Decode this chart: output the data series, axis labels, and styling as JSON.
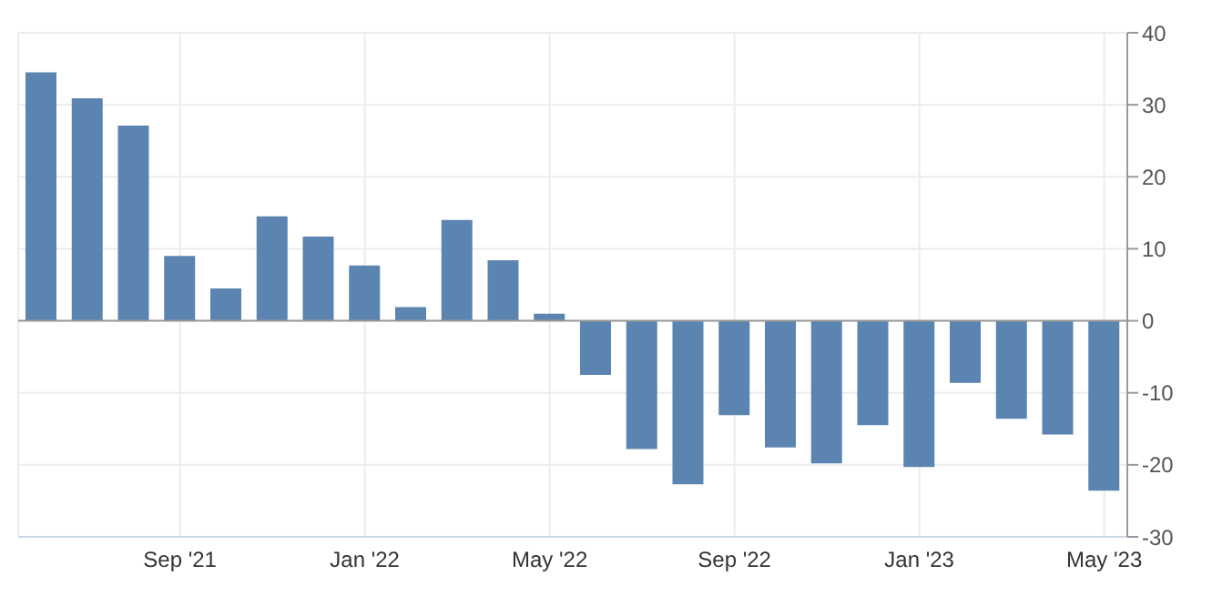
{
  "chart_data": {
    "type": "bar",
    "categories": [
      null,
      null,
      null,
      "Sep '21",
      null,
      null,
      null,
      "Jan '22",
      null,
      null,
      null,
      "May '22",
      null,
      null,
      null,
      "Sep '22",
      null,
      null,
      null,
      "Jan '23",
      null,
      null,
      null,
      "May '23"
    ],
    "values": [
      34.5,
      30.9,
      27.1,
      9.0,
      4.5,
      14.5,
      11.7,
      7.7,
      1.9,
      14.0,
      8.4,
      1.0,
      -7.5,
      -17.8,
      -22.7,
      -13.1,
      -17.6,
      -19.8,
      -14.5,
      -20.3,
      -8.6,
      -13.6,
      -15.8,
      -23.6
    ],
    "color": "#5b84b1",
    "ylim": [
      -30,
      40
    ],
    "yticks": [
      -30,
      -20,
      -10,
      0,
      10,
      20,
      30,
      40
    ],
    "grid": true
  }
}
